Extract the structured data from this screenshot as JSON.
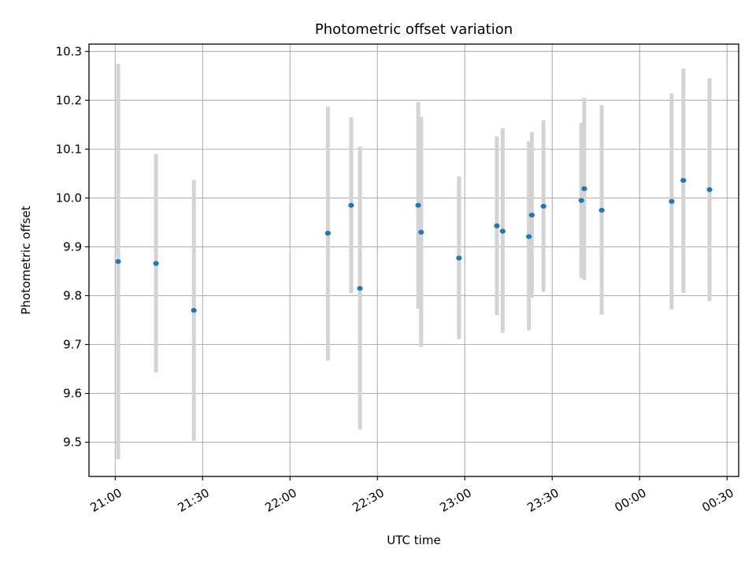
{
  "chart_data": {
    "type": "scatter",
    "title": "Photometric offset variation",
    "xlabel": "UTC time",
    "ylabel": "Photometric offset",
    "x_axis_type": "time",
    "xlim": [
      "20:51",
      "00:34"
    ],
    "ylim": [
      9.43,
      10.315
    ],
    "grid": true,
    "x_ticks": [
      "21:00",
      "21:30",
      "22:00",
      "22:30",
      "23:00",
      "23:30",
      "00:00",
      "00:30"
    ],
    "y_ticks": [
      "9.5",
      "9.6",
      "9.7",
      "9.8",
      "9.9",
      "10.0",
      "10.1",
      "10.2",
      "10.3"
    ],
    "colors": {
      "marker": "#1f77b4",
      "error_bar": "#d3d3d3",
      "grid": "#b0b0b0"
    },
    "points": [
      {
        "x": "21:01",
        "y": 9.87,
        "err_low": 9.465,
        "err_high": 10.275
      },
      {
        "x": "21:14",
        "y": 9.866,
        "err_low": 9.643,
        "err_high": 10.09
      },
      {
        "x": "21:27",
        "y": 9.77,
        "err_low": 9.503,
        "err_high": 10.037
      },
      {
        "x": "22:13",
        "y": 9.928,
        "err_low": 9.667,
        "err_high": 10.187
      },
      {
        "x": "22:21",
        "y": 9.985,
        "err_low": 9.805,
        "err_high": 10.165
      },
      {
        "x": "22:24",
        "y": 9.815,
        "err_low": 9.526,
        "err_high": 10.105
      },
      {
        "x": "22:44",
        "y": 9.985,
        "err_low": 9.773,
        "err_high": 10.197
      },
      {
        "x": "22:45",
        "y": 9.93,
        "err_low": 9.695,
        "err_high": 10.166
      },
      {
        "x": "22:58",
        "y": 9.877,
        "err_low": 9.711,
        "err_high": 10.044
      },
      {
        "x": "23:11",
        "y": 9.943,
        "err_low": 9.76,
        "err_high": 10.126
      },
      {
        "x": "23:13",
        "y": 9.932,
        "err_low": 9.724,
        "err_high": 10.143
      },
      {
        "x": "23:22",
        "y": 9.921,
        "err_low": 9.729,
        "err_high": 10.116
      },
      {
        "x": "23:23",
        "y": 9.965,
        "err_low": 9.796,
        "err_high": 10.135
      },
      {
        "x": "23:27",
        "y": 9.983,
        "err_low": 9.808,
        "err_high": 10.159
      },
      {
        "x": "23:40",
        "y": 9.995,
        "err_low": 9.836,
        "err_high": 10.154
      },
      {
        "x": "23:41",
        "y": 10.019,
        "err_low": 9.832,
        "err_high": 10.205
      },
      {
        "x": "23:47",
        "y": 9.975,
        "err_low": 9.761,
        "err_high": 10.19
      },
      {
        "x": "00:11",
        "y": 9.993,
        "err_low": 9.772,
        "err_high": 10.214
      },
      {
        "x": "00:15",
        "y": 10.036,
        "err_low": 9.806,
        "err_high": 10.265
      },
      {
        "x": "00:24",
        "y": 10.017,
        "err_low": 9.789,
        "err_high": 10.245
      }
    ]
  }
}
